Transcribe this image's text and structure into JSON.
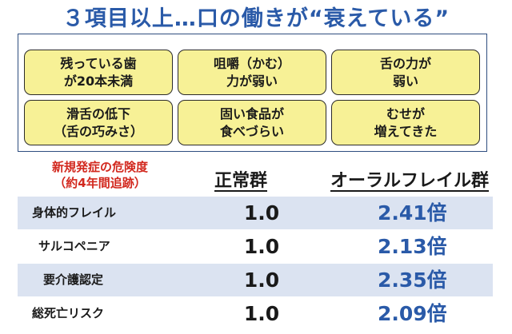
{
  "title": "３項目以上…口の働きが“衰えている”",
  "conditions": [
    "残っている歯\nが20本未満",
    "咀嚼（かむ）\n力が弱い",
    "舌の力が\n弱い",
    "滑舌の低下\n（舌の巧みさ）",
    "固い食品が\n食べづらい",
    "むせが\n増えてきた"
  ],
  "risk_label": "新規発症の危険度\n（約4年間追跡）",
  "columns": {
    "normal": "正常群",
    "oral_frail": "オーラルフレイル群"
  },
  "rows": [
    {
      "label": "身体的フレイル",
      "normal": "1.0",
      "oral_frail": "2.41倍"
    },
    {
      "label": "サルコペニア",
      "normal": "1.0",
      "oral_frail": "2.13倍"
    },
    {
      "label": "要介護認定",
      "normal": "1.0",
      "oral_frail": "2.35倍"
    },
    {
      "label": "総死亡リスク",
      "normal": "1.0",
      "oral_frail": "2.09倍"
    }
  ],
  "colors": {
    "title": "#2a5aa8",
    "risk_label": "#d2281e",
    "cell_fill": "#f7f196",
    "row_shade": "#dbe3f1"
  }
}
